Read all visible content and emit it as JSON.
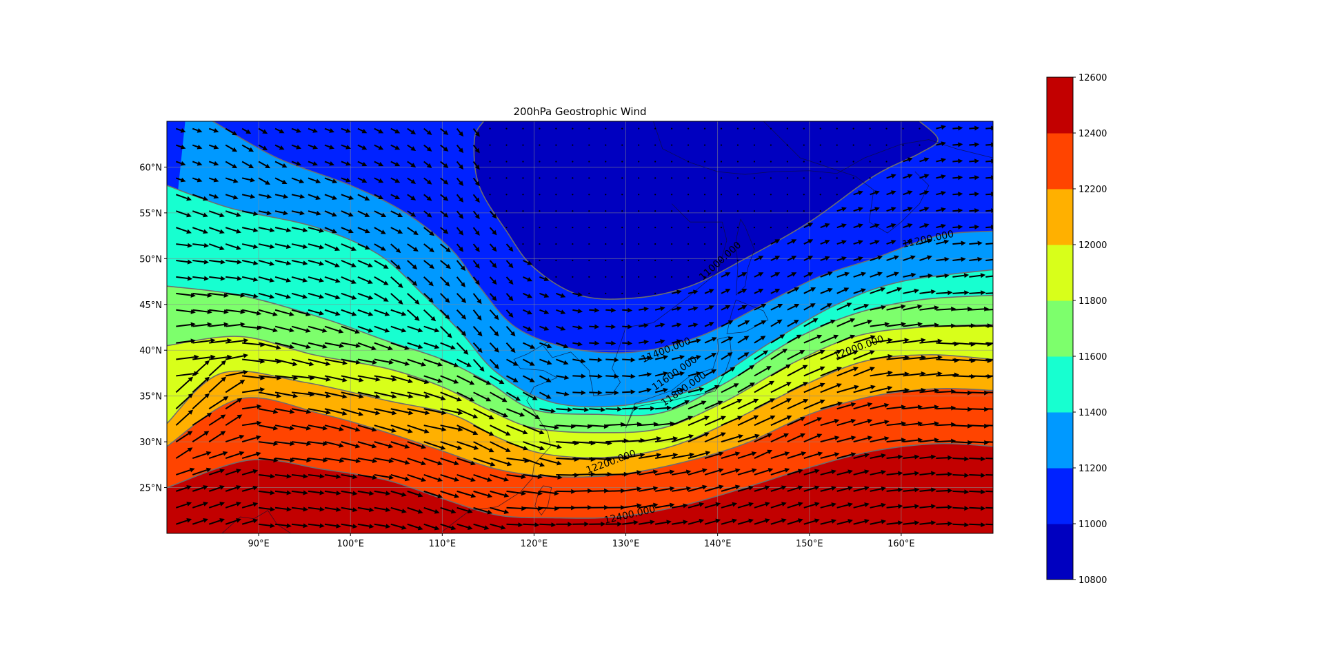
{
  "chart_data": {
    "type": "filled-contour-map",
    "title": "200hPa Geostrophic Wind",
    "x_ticks": [
      "90°E",
      "100°E",
      "110°E",
      "120°E",
      "130°E",
      "140°E",
      "150°E",
      "160°E"
    ],
    "x_tick_values": [
      90,
      100,
      110,
      120,
      130,
      140,
      150,
      160
    ],
    "y_ticks": [
      "60°N",
      "55°N",
      "50°N",
      "45°N",
      "40°N",
      "35°N",
      "30°N",
      "25°N"
    ],
    "y_tick_values": [
      60,
      55,
      50,
      45,
      40,
      35,
      30,
      25
    ],
    "lon_range": [
      80,
      170
    ],
    "lat_range": [
      20,
      65
    ],
    "grid": true,
    "colorbar": {
      "levels": [
        10800,
        11000,
        11200,
        11400,
        11600,
        11800,
        12000,
        12200,
        12400,
        12600
      ],
      "tick_labels": [
        "10800",
        "11000",
        "11200",
        "11400",
        "11600",
        "11800",
        "12000",
        "12200",
        "12400",
        "12600"
      ],
      "colors": [
        "#0000c0",
        "#0022ff",
        "#0099ff",
        "#17ffd0",
        "#7dff6c",
        "#d8ff1a",
        "#ffb000",
        "#ff4400",
        "#c20000"
      ]
    },
    "contour_labels": [
      "11000.000",
      "11200.000",
      "11400.000",
      "11600.000",
      "11800.000",
      "12000.000",
      "12200.000",
      "12400.000"
    ],
    "contour_boundaries": [
      {
        "level": 11000,
        "points": [
          [
            114.5,
            65
          ],
          [
            113.5,
            63
          ],
          [
            114,
            58
          ],
          [
            117,
            53
          ],
          [
            120,
            49
          ],
          [
            125,
            46
          ],
          [
            131,
            45.7
          ],
          [
            137,
            47
          ],
          [
            143,
            50
          ],
          [
            150,
            54
          ],
          [
            157,
            59
          ],
          [
            162,
            61.5
          ],
          [
            164,
            63
          ],
          [
            162,
            65
          ]
        ]
      },
      {
        "level": 11200,
        "points": [
          [
            85,
            65
          ],
          [
            92,
            61
          ],
          [
            100,
            58
          ],
          [
            106,
            55
          ],
          [
            111,
            51
          ],
          [
            114,
            47
          ],
          [
            118,
            42.5
          ],
          [
            124,
            40.2
          ],
          [
            131,
            39.8
          ],
          [
            138,
            41.5
          ],
          [
            145,
            45
          ],
          [
            151,
            48
          ],
          [
            157,
            50
          ],
          [
            164,
            52.5
          ],
          [
            170,
            53
          ]
        ]
      },
      {
        "level": 11400,
        "points": [
          [
            80,
            58
          ],
          [
            87,
            55.5
          ],
          [
            96,
            53.5
          ],
          [
            103,
            50.5
          ],
          [
            108,
            46
          ],
          [
            112,
            42
          ],
          [
            116,
            37.5
          ],
          [
            122,
            34.3
          ],
          [
            130,
            34
          ],
          [
            138,
            36
          ],
          [
            146,
            41
          ],
          [
            153,
            45
          ],
          [
            160,
            47.5
          ],
          [
            170,
            48.8
          ]
        ]
      },
      {
        "level": 11600,
        "points": [
          [
            80,
            47
          ],
          [
            88,
            46
          ],
          [
            97,
            43.5
          ],
          [
            104,
            41
          ],
          [
            110,
            39
          ],
          [
            115,
            36.5
          ],
          [
            120,
            33.5
          ],
          [
            127,
            33
          ],
          [
            134,
            33.2
          ],
          [
            141,
            36.5
          ],
          [
            148,
            41
          ],
          [
            155,
            44
          ],
          [
            162,
            45.5
          ],
          [
            170,
            46
          ]
        ]
      },
      {
        "level": 11800,
        "points": [
          [
            80,
            40.5
          ],
          [
            88,
            41.5
          ],
          [
            96,
            39.5
          ],
          [
            104,
            38
          ],
          [
            110,
            36
          ],
          [
            115,
            33.5
          ],
          [
            120,
            31.5
          ],
          [
            127,
            31
          ],
          [
            134,
            31.5
          ],
          [
            141,
            34.5
          ],
          [
            148,
            38.5
          ],
          [
            155,
            41.5
          ],
          [
            162,
            42.5
          ],
          [
            170,
            42.8
          ]
        ]
      },
      {
        "level": 12000,
        "points": [
          [
            80,
            32
          ],
          [
            86,
            37.5
          ],
          [
            95,
            36.5
          ],
          [
            104,
            34.5
          ],
          [
            111,
            33
          ],
          [
            116,
            30.5
          ],
          [
            121,
            28.7
          ],
          [
            128,
            28.3
          ],
          [
            135,
            29.5
          ],
          [
            142,
            32.5
          ],
          [
            149,
            36
          ],
          [
            156,
            38.8
          ],
          [
            163,
            39.5
          ],
          [
            170,
            39
          ]
        ]
      },
      {
        "level": 12200,
        "points": [
          [
            80,
            29.5
          ],
          [
            88,
            34.7
          ],
          [
            97,
            33
          ],
          [
            104,
            31
          ],
          [
            110,
            29
          ],
          [
            116,
            27
          ],
          [
            122,
            26.2
          ],
          [
            129,
            26.4
          ],
          [
            136,
            27.7
          ],
          [
            143,
            29.8
          ],
          [
            150,
            33
          ],
          [
            157,
            35
          ],
          [
            164,
            35.8
          ],
          [
            170,
            35.6
          ]
        ]
      },
      {
        "level": 12400,
        "points": [
          [
            80,
            25
          ],
          [
            89,
            28
          ],
          [
            97,
            27
          ],
          [
            104,
            25.8
          ],
          [
            110,
            23.8
          ],
          [
            116,
            22
          ],
          [
            122,
            21.7
          ],
          [
            129,
            21.8
          ],
          [
            136,
            23
          ],
          [
            143,
            25
          ],
          [
            150,
            27.2
          ],
          [
            157,
            29
          ],
          [
            164,
            29.8
          ],
          [
            170,
            29.5
          ]
        ]
      }
    ],
    "contour_label_positions": [
      {
        "text": "11000.000",
        "lon": 140.5,
        "lat": 49.5,
        "angle": -42
      },
      {
        "text": "11200.000",
        "lon": 163,
        "lat": 51.8,
        "angle": -12
      },
      {
        "text": "11400.000",
        "lon": 134.5,
        "lat": 39.7,
        "angle": -22
      },
      {
        "text": "11600.000",
        "lon": 135.5,
        "lat": 37.2,
        "angle": -35
      },
      {
        "text": "11800.000",
        "lon": 136.5,
        "lat": 35.5,
        "angle": -35
      },
      {
        "text": "12000.000",
        "lon": 155.5,
        "lat": 40,
        "angle": -20
      },
      {
        "text": "12200.000",
        "lon": 128.5,
        "lat": 27.5,
        "angle": -20
      },
      {
        "text": "12400.000",
        "lon": 130.5,
        "lat": 21.7,
        "angle": -13
      }
    ],
    "wind_arrows": "dense geostrophic wind vectors, strongest along the jet between roughly 25°N and 45°N"
  }
}
